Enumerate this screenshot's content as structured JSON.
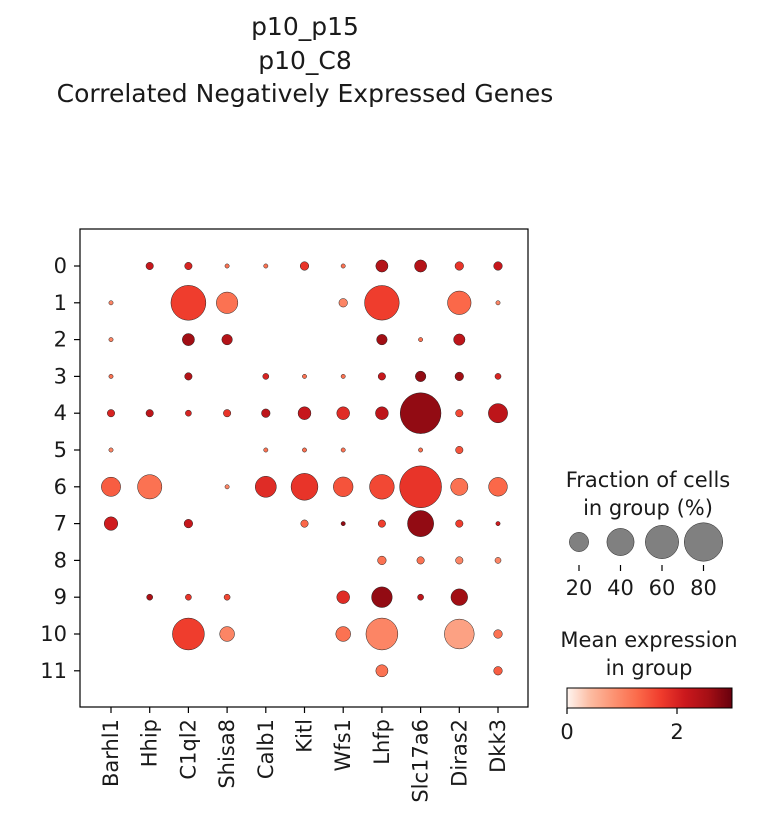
{
  "chart_data": {
    "type": "dotplot",
    "title_lines": [
      "p10_p15",
      "p10_C8",
      "Correlated Negatively Expressed Genes"
    ],
    "genes": [
      "Barhl1",
      "Hhip",
      "C1ql2",
      "Shisa8",
      "Calb1",
      "Kitl",
      "Wfs1",
      "Lhfp",
      "Slc17a6",
      "Diras2",
      "Dkk3"
    ],
    "groups": [
      "0",
      "1",
      "2",
      "3",
      "4",
      "5",
      "6",
      "7",
      "8",
      "9",
      "10",
      "11"
    ],
    "fraction_percent": [
      [
        0,
        3,
        3,
        1,
        1,
        4,
        1,
        8,
        8,
        4,
        4
      ],
      [
        1,
        0,
        66,
        25,
        0,
        0,
        4,
        65,
        0,
        30,
        1
      ],
      [
        1,
        0,
        8,
        6,
        0,
        0,
        0,
        6,
        1,
        7,
        0
      ],
      [
        1,
        0,
        3,
        0,
        2,
        1,
        1,
        3,
        6,
        4,
        2
      ],
      [
        3,
        3,
        2,
        3,
        4,
        9,
        9,
        9,
        90,
        3,
        20
      ],
      [
        1,
        0,
        0,
        0,
        1,
        1,
        1,
        0,
        1,
        3,
        0
      ],
      [
        20,
        32,
        0,
        1,
        24,
        39,
        21,
        33,
        95,
        16,
        19
      ],
      [
        10,
        0,
        4,
        0,
        0,
        3,
        1,
        3,
        37,
        3,
        1
      ],
      [
        0,
        0,
        0,
        0,
        0,
        0,
        0,
        4,
        3,
        3,
        2
      ],
      [
        0,
        2,
        2,
        2,
        0,
        0,
        9,
        23,
        2,
        15,
        0
      ],
      [
        0,
        0,
        55,
        12,
        0,
        0,
        12,
        55,
        0,
        48,
        4
      ],
      [
        0,
        0,
        0,
        0,
        0,
        0,
        0,
        8,
        0,
        0,
        4
      ]
    ],
    "mean_expression": [
      [
        0,
        2.2,
        2.0,
        1.2,
        1.2,
        1.8,
        1.2,
        2.4,
        2.4,
        1.8,
        2.2
      ],
      [
        1.0,
        0,
        1.7,
        1.2,
        0,
        0,
        1.0,
        1.7,
        0,
        1.3,
        1.0
      ],
      [
        1.0,
        0,
        2.6,
        2.4,
        0,
        0,
        0,
        2.6,
        1.2,
        2.3,
        0
      ],
      [
        1.2,
        0,
        2.4,
        0,
        2.0,
        1.2,
        1.2,
        2.2,
        2.7,
        2.6,
        2.0
      ],
      [
        2.0,
        2.3,
        2.0,
        1.8,
        2.3,
        2.2,
        1.9,
        2.3,
        2.7,
        1.6,
        2.3
      ],
      [
        1.0,
        0,
        0,
        0,
        1.2,
        1.2,
        1.2,
        0,
        1.2,
        1.5,
        0
      ],
      [
        1.4,
        1.2,
        0,
        1.0,
        1.9,
        1.8,
        1.5,
        1.6,
        1.8,
        1.2,
        1.3
      ],
      [
        2.1,
        0,
        2.2,
        0,
        0,
        1.3,
        2.7,
        1.7,
        2.7,
        1.7,
        2.1
      ],
      [
        0,
        0,
        0,
        0,
        0,
        0,
        0,
        1.2,
        1.2,
        1.0,
        1.0
      ],
      [
        0,
        2.5,
        1.8,
        1.6,
        0,
        0,
        1.9,
        2.7,
        2.3,
        2.6,
        0
      ],
      [
        0,
        0,
        1.7,
        1.0,
        0,
        0,
        1.2,
        1.0,
        0,
        0.7,
        1.2
      ],
      [
        0,
        0,
        0,
        0,
        0,
        0,
        0,
        1.2,
        0,
        0,
        1.4
      ]
    ],
    "size_legend": {
      "title_lines": [
        "Fraction of cells",
        "in group (%)"
      ],
      "values": [
        20,
        40,
        60,
        80
      ],
      "color": "#808080"
    },
    "color_legend": {
      "title_lines": [
        "Mean expression",
        "in group"
      ],
      "ticks": [
        0,
        2
      ],
      "range": [
        0,
        3
      ],
      "colormap": "Reds",
      "stops": [
        "#fff5f0",
        "#fcbba1",
        "#fc9272",
        "#fb6a4a",
        "#ef3b2c",
        "#cb181d",
        "#a50f15",
        "#67000d"
      ]
    }
  }
}
